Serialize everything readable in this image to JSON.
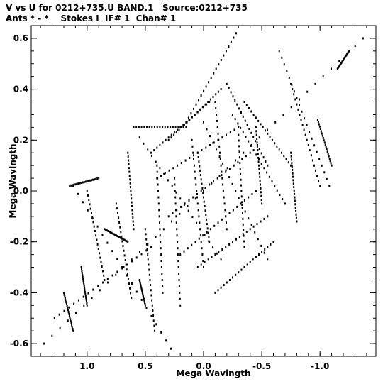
{
  "chart_data": {
    "type": "scatter",
    "title_line1": "V vs U for 0212+735.U BAND.1   Source:0212+735",
    "title_line2": "Ants * - *    Stokes I  IF# 1  Chan# 1",
    "xlabel": "Mega Wavlngth",
    "ylabel": "Mega Wavlngth",
    "xlim": [
      1.48,
      -1.48
    ],
    "ylim": [
      -0.65,
      0.65
    ],
    "xticks": [
      1.0,
      0.5,
      0.0,
      -0.5,
      -1.0
    ],
    "xtick_labels": [
      "1.0",
      "0.5",
      "0.0",
      "-0.5",
      "-1.0"
    ],
    "yticks": [
      -0.6,
      -0.4,
      -0.2,
      0.0,
      0.2,
      0.4,
      0.6
    ],
    "ytick_labels": [
      "-0.6",
      "-0.4",
      "-0.2",
      "0.0",
      "0.2",
      "0.4",
      "0.6"
    ],
    "grid": false,
    "marker_color": "#000000",
    "tracks": [
      {
        "x1": 1.37,
        "y1": -0.6,
        "x2": 0.0,
        "y2": 0.0
      },
      {
        "x1": 0.0,
        "y1": 0.0,
        "x2": -1.37,
        "y2": 0.6
      },
      {
        "x1": 1.12,
        "y1": 0.02,
        "x2": 0.28,
        "y2": -0.62
      },
      {
        "x1": 0.55,
        "y1": 0.21,
        "x2": -0.15,
        "y2": -0.27
      },
      {
        "x1": 0.0,
        "y1": 0.27,
        "x2": -0.55,
        "y2": -0.27
      },
      {
        "x1": 0.15,
        "y1": 0.27,
        "x2": -0.28,
        "y2": 0.62
      },
      {
        "x1": -0.65,
        "y1": 0.55,
        "x2": -1.08,
        "y2": 0.02
      },
      {
        "x1": -0.75,
        "y1": 0.42,
        "x2": -1.0,
        "y2": 0.02
      },
      {
        "x1": -0.98,
        "y1": 0.28,
        "x2": -1.1,
        "y2": 0.1
      },
      {
        "x1": 1.0,
        "y1": 0.0,
        "x2": 0.85,
        "y2": -0.35
      },
      {
        "x1": 0.75,
        "y1": -0.05,
        "x2": 0.62,
        "y2": -0.42
      },
      {
        "x1": 0.9,
        "y1": 0.05,
        "x2": 1.15,
        "y2": 0.02
      },
      {
        "x1": 0.5,
        "y1": -0.15,
        "x2": 0.42,
        "y2": -0.55
      },
      {
        "x1": 1.28,
        "y1": -0.5,
        "x2": 0.45,
        "y2": -0.22
      },
      {
        "x1": 0.85,
        "y1": -0.15,
        "x2": 0.65,
        "y2": -0.2
      },
      {
        "x1": 0.6,
        "y1": 0.25,
        "x2": 0.15,
        "y2": 0.25
      },
      {
        "x1": 0.4,
        "y1": 0.05,
        "x2": -0.3,
        "y2": 0.25
      },
      {
        "x1": 0.3,
        "y1": -0.1,
        "x2": -0.4,
        "y2": 0.15
      },
      {
        "x1": 0.2,
        "y1": -0.25,
        "x2": -0.45,
        "y2": 0.0
      },
      {
        "x1": 0.05,
        "y1": -0.3,
        "x2": -0.55,
        "y2": -0.1
      },
      {
        "x1": -0.1,
        "y1": -0.4,
        "x2": -0.6,
        "y2": -0.2
      },
      {
        "x1": 0.45,
        "y1": 0.15,
        "x2": -0.05,
        "y2": 0.35
      },
      {
        "x1": 0.3,
        "y1": 0.2,
        "x2": -0.15,
        "y2": 0.4
      },
      {
        "x1": -0.2,
        "y1": 0.42,
        "x2": -0.55,
        "y2": 0.1
      },
      {
        "x1": -0.25,
        "y1": 0.3,
        "x2": -0.7,
        "y2": -0.05
      },
      {
        "x1": -0.35,
        "y1": 0.35,
        "x2": -0.75,
        "y2": 0.1
      },
      {
        "x1": 0.4,
        "y1": 0.1,
        "x2": 0.35,
        "y2": -0.4
      },
      {
        "x1": 0.25,
        "y1": 0.05,
        "x2": 0.2,
        "y2": -0.45
      },
      {
        "x1": 0.1,
        "y1": 0.2,
        "x2": 0.0,
        "y2": -0.3
      },
      {
        "x1": 0.05,
        "y1": 0.15,
        "x2": -0.05,
        "y2": -0.2
      },
      {
        "x1": -0.1,
        "y1": 0.35,
        "x2": -0.2,
        "y2": -0.15
      },
      {
        "x1": -0.3,
        "y1": 0.22,
        "x2": -0.35,
        "y2": -0.22
      },
      {
        "x1": -0.45,
        "y1": 0.25,
        "x2": -0.5,
        "y2": -0.05
      },
      {
        "x1": 0.65,
        "y1": 0.15,
        "x2": 0.6,
        "y2": -0.15
      },
      {
        "x1": -0.75,
        "y1": 0.15,
        "x2": -0.8,
        "y2": -0.12
      },
      {
        "x1": 1.05,
        "y1": -0.3,
        "x2": 1.0,
        "y2": -0.45
      },
      {
        "x1": 1.2,
        "y1": -0.4,
        "x2": 1.12,
        "y2": -0.55
      },
      {
        "x1": -1.15,
        "y1": 0.48,
        "x2": -1.25,
        "y2": 0.55
      },
      {
        "x1": 0.55,
        "y1": -0.35,
        "x2": 0.5,
        "y2": -0.45
      }
    ],
    "points_per_track": 20
  }
}
